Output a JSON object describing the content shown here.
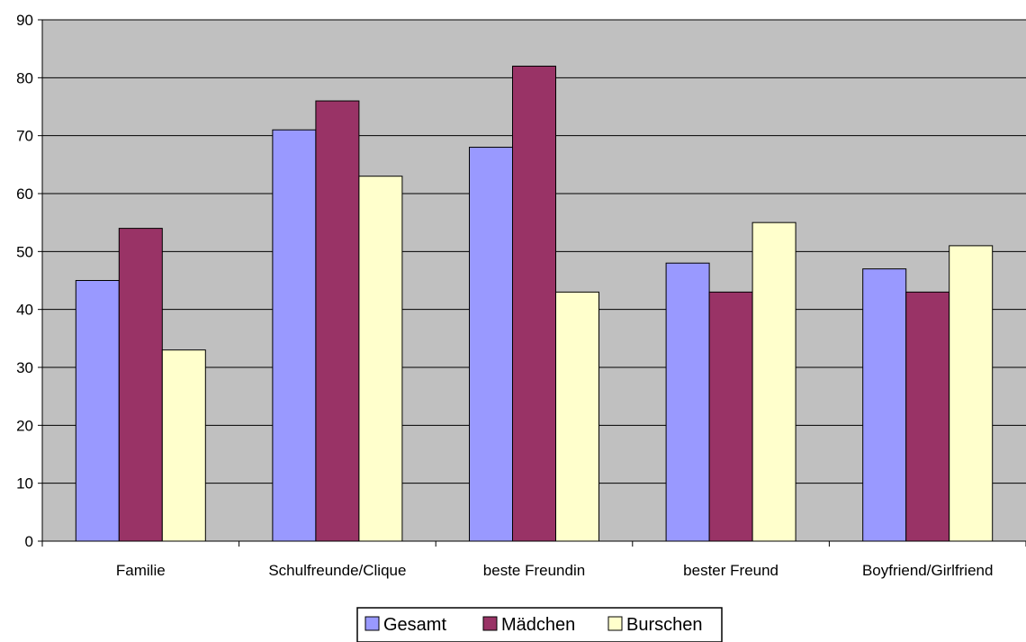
{
  "chart_data": {
    "type": "bar",
    "categories": [
      "Familie",
      "Schulfreunde/Clique",
      "beste Freundin",
      "bester Freund",
      "Boyfriend/Girlfriend"
    ],
    "series": [
      {
        "name": "Gesamt",
        "values": [
          45,
          71,
          68,
          48,
          47
        ],
        "color": "#9999ff"
      },
      {
        "name": "Mädchen",
        "values": [
          54,
          76,
          82,
          43,
          43
        ],
        "color": "#993366"
      },
      {
        "name": "Burschen",
        "values": [
          33,
          63,
          43,
          55,
          51
        ],
        "color": "#ffffcc"
      }
    ],
    "ylim": [
      0,
      90
    ],
    "yticks": [
      0,
      10,
      20,
      30,
      40,
      50,
      60,
      70,
      80,
      90
    ],
    "grid": true,
    "plot_background": "#c0c0c0",
    "legend_position": "bottom-center"
  }
}
